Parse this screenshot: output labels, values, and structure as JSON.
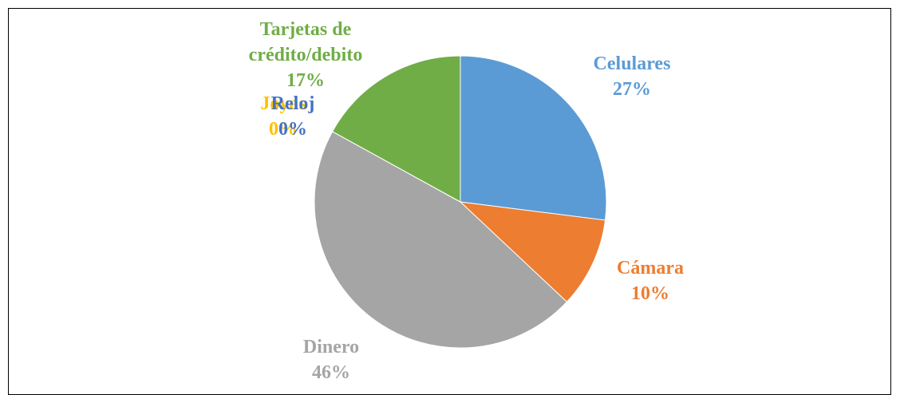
{
  "chart_data": {
    "type": "pie",
    "categories": [
      "Celulares",
      "Cámara",
      "Dinero",
      "Joyas",
      "Reloj",
      "Tarjetas de crédito/debito"
    ],
    "values": [
      27,
      10,
      46,
      0,
      0,
      17
    ],
    "value_labels": [
      "27%",
      "10%",
      "46%",
      "0%",
      "0%",
      "17%"
    ],
    "colors": [
      "#5b9bd5",
      "#ed7d31",
      "#a5a5a5",
      "#ffc000",
      "#4472c4",
      "#70ad47"
    ]
  }
}
